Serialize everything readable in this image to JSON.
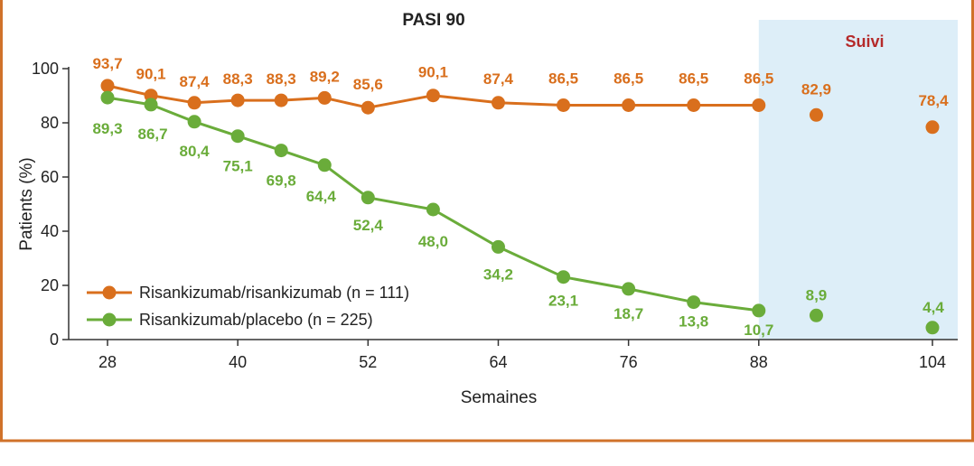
{
  "colors": {
    "border": "#d0722a",
    "orange": "#d96f1d",
    "green": "#6aac3a",
    "followup_bg": "#ddeef8",
    "followup_text": "#b52a2a",
    "axis": "#333333"
  },
  "chart_data": {
    "type": "line",
    "title": "PASI 90",
    "xlabel": "Semaines",
    "ylabel": "Patients (%)",
    "xlim": [
      26,
      106
    ],
    "ylim": [
      0,
      100
    ],
    "x_ticks": [
      "28",
      "40",
      "52",
      "64",
      "76",
      "88",
      "104"
    ],
    "y_ticks": [
      "0",
      "20",
      "40",
      "60",
      "80",
      "100"
    ],
    "followup_label": "Suivi",
    "followup_start": 88,
    "legend_position": "bottom-left",
    "series": [
      {
        "name": "Risankizumab/risankizumab (n = 111)",
        "color": "#d96f1d",
        "points": [
          {
            "x": 28,
            "y": 93.7,
            "label": "93,7"
          },
          {
            "x": 32,
            "y": 90.1,
            "label": "90,1"
          },
          {
            "x": 36,
            "y": 87.4,
            "label": "87,4"
          },
          {
            "x": 40,
            "y": 88.3,
            "label": "88,3"
          },
          {
            "x": 44,
            "y": 88.3,
            "label": "88,3"
          },
          {
            "x": 48,
            "y": 89.2,
            "label": "89,2"
          },
          {
            "x": 52,
            "y": 85.6,
            "label": "85,6"
          },
          {
            "x": 58,
            "y": 90.1,
            "label": "90,1"
          },
          {
            "x": 64,
            "y": 87.4,
            "label": "87,4"
          },
          {
            "x": 70,
            "y": 86.5,
            "label": "86,5"
          },
          {
            "x": 76,
            "y": 86.5,
            "label": "86,5"
          },
          {
            "x": 82,
            "y": 86.5,
            "label": "86,5"
          },
          {
            "x": 88,
            "y": 86.5,
            "label": "86,5"
          }
        ],
        "followup_points": [
          {
            "x": 93.3,
            "y": 82.9,
            "label": "82,9"
          },
          {
            "x": 104,
            "y": 78.4,
            "label": "78,4"
          }
        ]
      },
      {
        "name": "Risankizumab/placebo  (n = 225)",
        "color": "#6aac3a",
        "points": [
          {
            "x": 28,
            "y": 89.3,
            "label": "89,3"
          },
          {
            "x": 32,
            "y": 86.7,
            "label": "86,7"
          },
          {
            "x": 36,
            "y": 80.4,
            "label": "80,4"
          },
          {
            "x": 40,
            "y": 75.1,
            "label": "75,1"
          },
          {
            "x": 44,
            "y": 69.8,
            "label": "69,8"
          },
          {
            "x": 48,
            "y": 64.4,
            "label": "64,4"
          },
          {
            "x": 52,
            "y": 52.4,
            "label": "52,4"
          },
          {
            "x": 58,
            "y": 48.0,
            "label": "48,0"
          },
          {
            "x": 64,
            "y": 34.2,
            "label": "34,2"
          },
          {
            "x": 70,
            "y": 23.1,
            "label": "23,1"
          },
          {
            "x": 76,
            "y": 18.7,
            "label": "18,7"
          },
          {
            "x": 82,
            "y": 13.8,
            "label": "13,8"
          },
          {
            "x": 88,
            "y": 10.7,
            "label": "10,7"
          }
        ],
        "followup_points": [
          {
            "x": 93.3,
            "y": 8.9,
            "label": "8,9"
          },
          {
            "x": 104,
            "y": 4.4,
            "label": "4,4"
          }
        ]
      }
    ]
  }
}
